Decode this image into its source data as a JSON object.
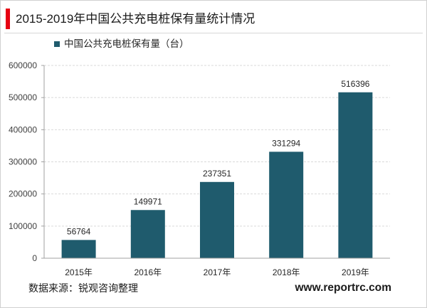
{
  "colors": {
    "accent": "#E60012",
    "bar": "#1F5B6D",
    "grid": "#D9D9D9",
    "axis": "#A0A0A0"
  },
  "chart_data": {
    "type": "bar",
    "title": "2015-2019年中国公共充电桩保有量统计情况",
    "categories": [
      "2015年",
      "2016年",
      "2017年",
      "2018年",
      "2019年"
    ],
    "series": [
      {
        "name": "中国公共充电桩保有量（台）",
        "values": [
          56764,
          149971,
          237351,
          331294,
          516396
        ]
      }
    ],
    "ylim": [
      0,
      600000
    ],
    "yticks": [
      0,
      100000,
      200000,
      300000,
      400000,
      500000,
      600000
    ],
    "grid": true,
    "legend": "top-left",
    "data_labels": true
  },
  "footer": {
    "source": "数据来源：锐观咨询整理",
    "website": "www.reportrc.com"
  }
}
